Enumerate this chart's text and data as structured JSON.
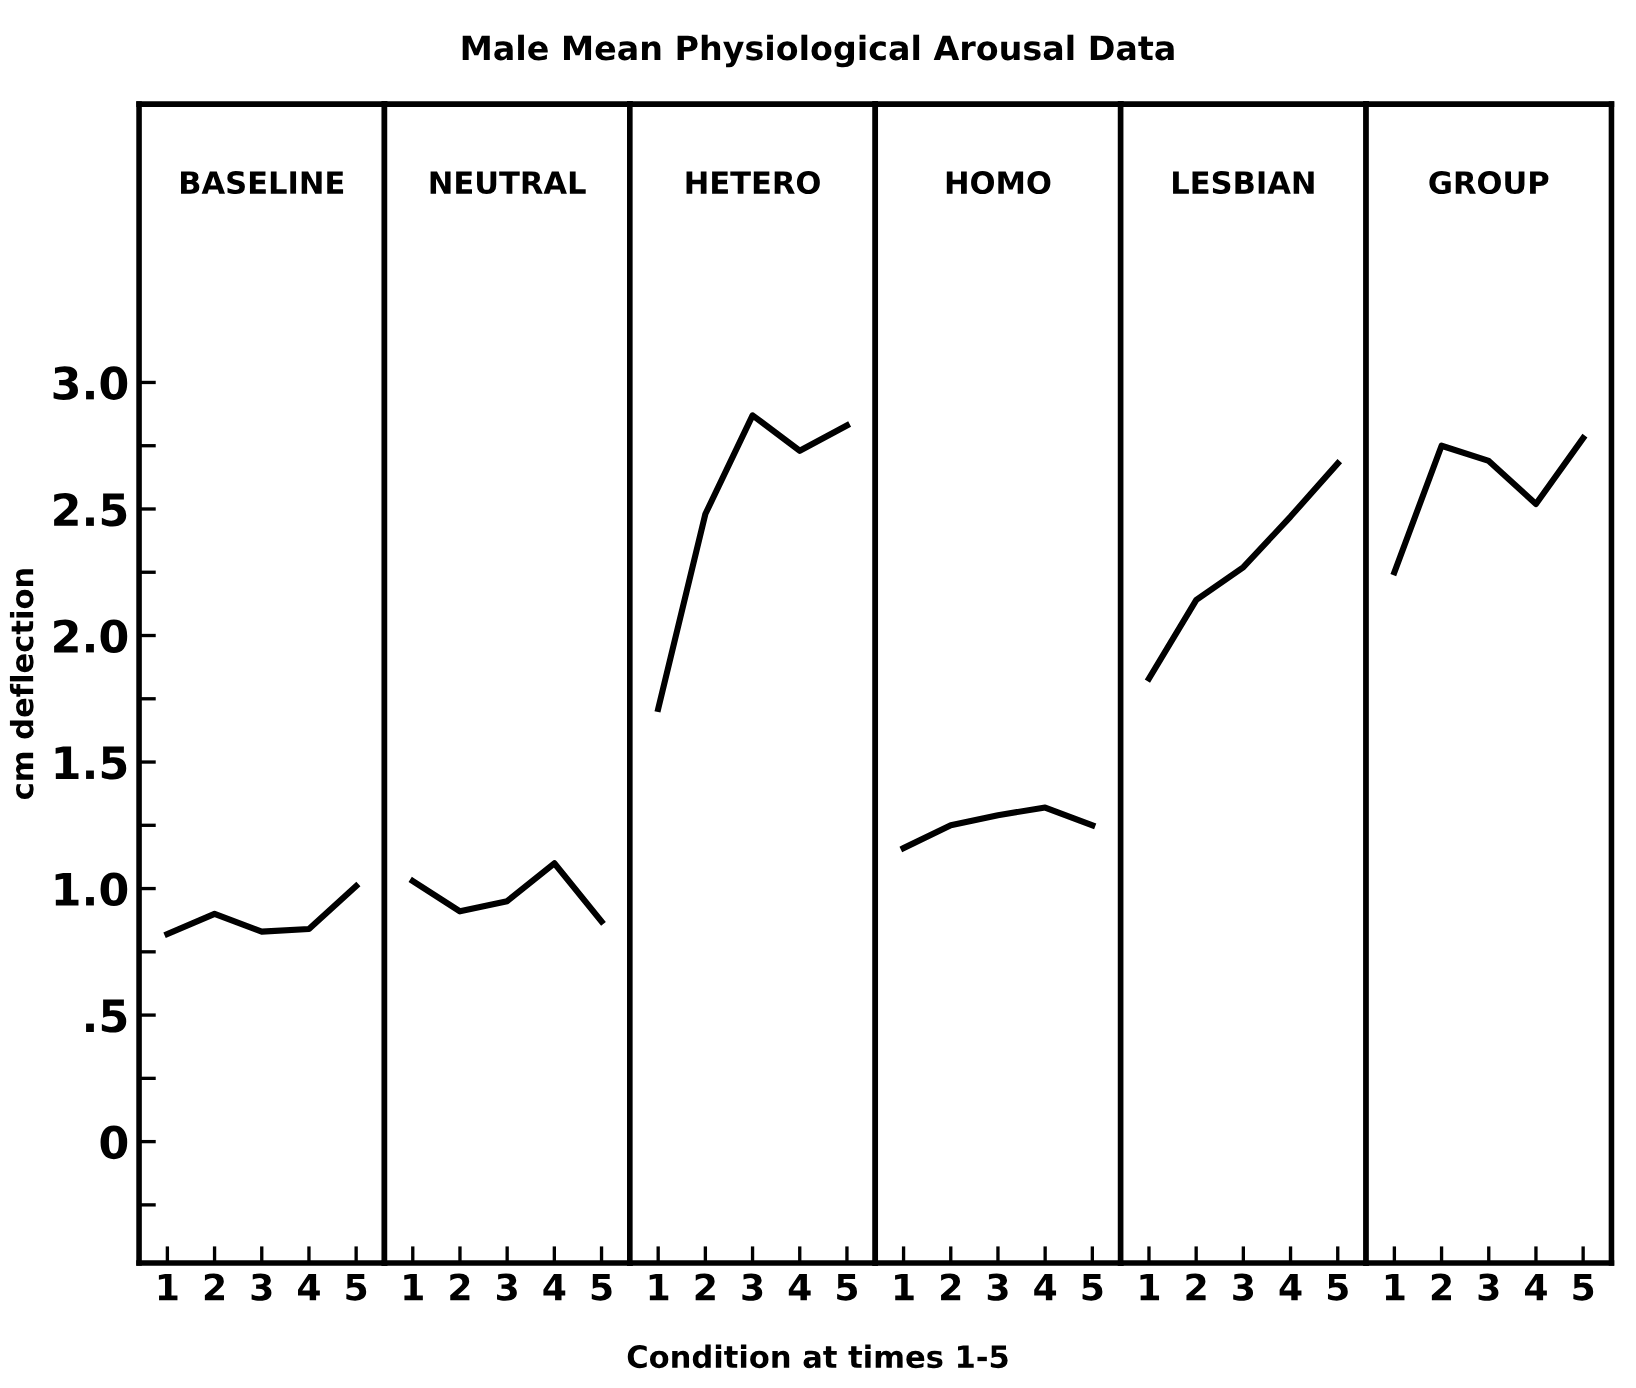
{
  "chart_data": [
    {
      "type": "line",
      "subtitle": "BASELINE",
      "ylabel": "cm deflection",
      "categories": [
        "1",
        "2",
        "3",
        "4",
        "5"
      ],
      "series": [
        {
          "color": "#000000",
          "values": [
            0.82,
            0.9,
            0.83,
            0.84,
            1.01
          ]
        }
      ],
      "ylim": [
        -0.48,
        4.1
      ],
      "yticks": [
        {
          "value": -0.25,
          "label": null
        },
        0,
        {
          "value": 0.25,
          "label": null
        },
        {
          "value": 0.5,
          "label": ".5"
        },
        {
          "value": 0.75,
          "label": null
        },
        {
          "value": 1.0,
          "label": "1.0"
        },
        {
          "value": 1.25,
          "label": null
        },
        {
          "value": 1.5,
          "label": "1.5"
        },
        {
          "value": 1.75,
          "label": null
        },
        {
          "value": 2.0,
          "label": "2.0"
        },
        {
          "value": 2.25,
          "label": null
        },
        {
          "value": 2.5,
          "label": "2.5"
        },
        {
          "value": 2.75,
          "label": null
        },
        {
          "value": 3.0,
          "label": "3.0"
        }
      ],
      "grid": false,
      "legend": false
    },
    {
      "type": "line",
      "subtitle": "NEUTRAL",
      "categories": [
        "1",
        "2",
        "3",
        "4",
        "5"
      ],
      "series": [
        {
          "color": "#000000",
          "values": [
            1.03,
            0.91,
            0.95,
            1.1,
            0.87
          ]
        }
      ],
      "ylim": [
        -0.48,
        4.1
      ],
      "tick_labels": "x",
      "grid": false,
      "legend": false
    },
    {
      "type": "line",
      "title": "Male Mean Physiological Arousal Data",
      "xlabel": "Condition at times 1-5",
      "subtitle": "HETERO",
      "categories": [
        "1",
        "2",
        "3",
        "4",
        "5"
      ],
      "series": [
        {
          "color": "#000000",
          "values": [
            1.71,
            2.48,
            2.87,
            2.73,
            2.83
          ]
        }
      ],
      "ylim": [
        -0.48,
        4.1
      ],
      "tick_labels": "x",
      "grid": false,
      "legend": false
    },
    {
      "type": "line",
      "subtitle": "HOMO",
      "categories": [
        "1",
        "2",
        "3",
        "4",
        "5"
      ],
      "series": [
        {
          "color": "#000000",
          "values": [
            1.16,
            1.25,
            1.29,
            1.32,
            1.25
          ]
        }
      ],
      "ylim": [
        -0.48,
        4.1
      ],
      "tick_labels": "x",
      "grid": false,
      "legend": false
    },
    {
      "type": "line",
      "subtitle": "LESBIAN",
      "categories": [
        "1",
        "2",
        "3",
        "4",
        "5"
      ],
      "series": [
        {
          "color": "#000000",
          "values": [
            1.83,
            2.14,
            2.27,
            2.47,
            2.68
          ]
        }
      ],
      "ylim": [
        -0.48,
        4.1
      ],
      "tick_labels": "x",
      "grid": false,
      "legend": false
    },
    {
      "type": "line",
      "subtitle": "GROUP",
      "categories": [
        "1",
        "2",
        "3",
        "4",
        "5"
      ],
      "series": [
        {
          "color": "#000000",
          "values": [
            2.25,
            2.75,
            2.69,
            2.52,
            2.78
          ]
        }
      ],
      "ylim": [
        -0.48,
        4.1
      ],
      "tick_labels": "x",
      "grid": false,
      "legend": false
    }
  ]
}
